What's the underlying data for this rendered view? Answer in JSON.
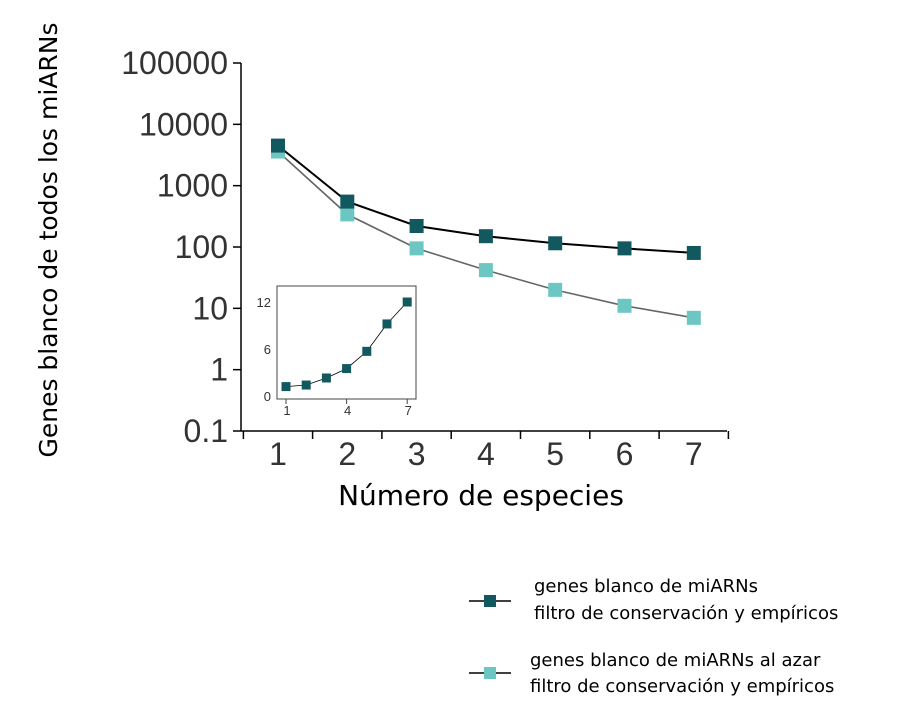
{
  "chart_data": {
    "type": "line",
    "title": "",
    "xlabel": "Número de especies",
    "ylabel": "Genes blanco de todos los miARNs",
    "x": [
      1,
      2,
      3,
      4,
      5,
      6,
      7
    ],
    "x_tick_labels": [
      "1",
      "2",
      "3",
      "4",
      "5",
      "6",
      "7"
    ],
    "y_scale": "log",
    "ylim": [
      0.1,
      100000
    ],
    "y_tick_labels": [
      "100000",
      "10000",
      "1000",
      "100",
      "10",
      "1",
      "0.1"
    ],
    "grid": false,
    "legend_position": "bottom-right",
    "series": [
      {
        "name": "genes blanco de miARNs filtro de conservación y empíricos",
        "legend_lines": [
          "genes blanco de miARNs",
          "filtro de conservación y empíricos"
        ],
        "color": "#12595f",
        "line_color": "#000000",
        "values": [
          4500,
          550,
          220,
          150,
          115,
          95,
          80
        ]
      },
      {
        "name": "genes blanco de miARNs al azar filtro de conservación y empíricos",
        "legend_lines": [
          "genes blanco de miARNs al azar",
          "filtro de conservación y empíricos"
        ],
        "color": "#6cc7c3",
        "line_color": "#666666",
        "values": [
          3600,
          340,
          95,
          42,
          20,
          11,
          7
        ]
      }
    ],
    "inset": {
      "type": "line",
      "x": [
        1,
        2,
        3,
        4,
        5,
        6,
        7
      ],
      "x_tick_labels": [
        "1",
        "4",
        "7"
      ],
      "y_tick_labels": [
        "0",
        "6",
        "12"
      ],
      "ylim": [
        0,
        14
      ],
      "values": [
        1.2,
        1.4,
        2.3,
        3.5,
        5.7,
        9.2,
        12
      ],
      "color": "#12595f"
    }
  }
}
